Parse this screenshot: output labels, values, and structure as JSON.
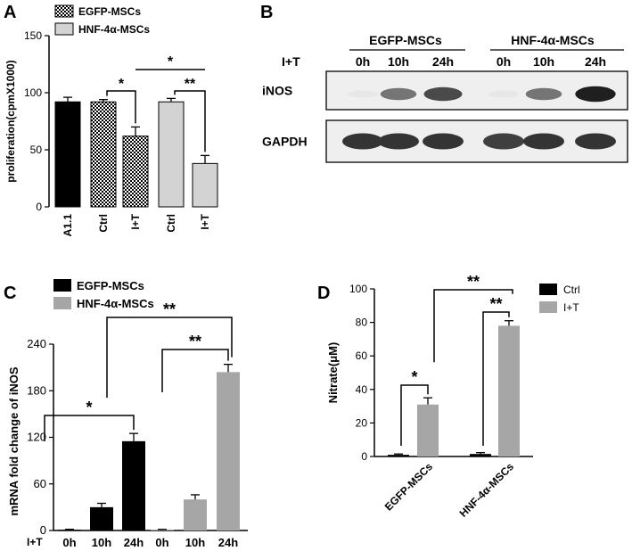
{
  "panels": {
    "A": "A",
    "B": "B",
    "C": "C",
    "D": "D"
  },
  "western_blot": {
    "groups": [
      "EGFP-MSCs",
      "HNF-4α-MSCs"
    ],
    "treatment_label": "I+T",
    "lanes": [
      "0h",
      "10h",
      "24h",
      "0h",
      "10h",
      "24h"
    ],
    "rows": [
      {
        "label": "iNOS",
        "intensity": [
          0.02,
          0.55,
          0.75,
          0.02,
          0.55,
          0.95
        ]
      },
      {
        "label": "GAPDH",
        "intensity": [
          0.85,
          0.85,
          0.85,
          0.8,
          0.85,
          0.85
        ]
      }
    ]
  },
  "chart_data": [
    {
      "type": "bar",
      "panel": "A",
      "ylabel": "proliferation(cpmX1000)",
      "ylim": [
        0,
        150
      ],
      "yticks": [
        0,
        50,
        100,
        150
      ],
      "categories": [
        "A1.1",
        "Ctrl",
        "I+T",
        "Ctrl",
        "I+T"
      ],
      "values": [
        92,
        92,
        62,
        92,
        38
      ],
      "errors": [
        4,
        2,
        8,
        3,
        7
      ],
      "bar_fills": [
        "#000000",
        "check",
        "check",
        "#d3d3d3",
        "#d3d3d3"
      ],
      "legend": [
        "EGFP-MSCs",
        "HNF-4α-MSCs"
      ],
      "legend_position": "top",
      "significance": [
        {
          "from": 1,
          "to": 2,
          "label": "*"
        },
        {
          "from": 3,
          "to": 4,
          "label": "**"
        },
        {
          "from": 2,
          "to": 4,
          "label": "*"
        }
      ]
    },
    {
      "type": "bar",
      "panel": "C",
      "ylabel": "mRNA fold change of iNOS",
      "ylim": [
        0,
        240
      ],
      "yticks": [
        0,
        60,
        120,
        180,
        240
      ],
      "x_prefix": "I+T",
      "categories": [
        "0h",
        "10h",
        "24h",
        "0h",
        "10h",
        "24h"
      ],
      "values": [
        1,
        30,
        115,
        1,
        40,
        204
      ],
      "errors": [
        0.5,
        5,
        10,
        0.5,
        6,
        10
      ],
      "bar_colors": [
        "#000000",
        "#000000",
        "#000000",
        "#a6a6a6",
        "#a6a6a6",
        "#a6a6a6"
      ],
      "legend": [
        {
          "name": "EGFP-MSCs",
          "color": "#000000"
        },
        {
          "name": "HNF-4α-MSCs",
          "color": "#a6a6a6"
        }
      ],
      "legend_position": "top-left",
      "significance": [
        {
          "from": 0,
          "to": 2,
          "label": "*"
        },
        {
          "from": 3,
          "to": 5,
          "label": "**"
        },
        {
          "from": 2,
          "to": 5,
          "label": "**"
        }
      ]
    },
    {
      "type": "bar",
      "panel": "D",
      "ylabel": "Nitrate(μM)",
      "ylim": [
        0,
        100
      ],
      "yticks": [
        0,
        20,
        40,
        60,
        80,
        100
      ],
      "categories": [
        "EGFP-MSCs",
        "HNF-4α-MSCs"
      ],
      "series": [
        {
          "name": "Ctrl",
          "color": "#000000",
          "values": [
            1,
            1.5
          ],
          "errors": [
            0.5,
            0.8
          ]
        },
        {
          "name": "I+T",
          "color": "#a6a6a6",
          "values": [
            31,
            78
          ],
          "errors": [
            4,
            3
          ]
        }
      ],
      "legend_position": "top-right",
      "significance": [
        {
          "from": [
            0,
            0
          ],
          "to": [
            0,
            1
          ],
          "label": "*"
        },
        {
          "from": [
            1,
            0
          ],
          "to": [
            1,
            1
          ],
          "label": "**"
        },
        {
          "from": [
            0,
            1
          ],
          "to": [
            1,
            1
          ],
          "label": "**"
        }
      ]
    }
  ]
}
